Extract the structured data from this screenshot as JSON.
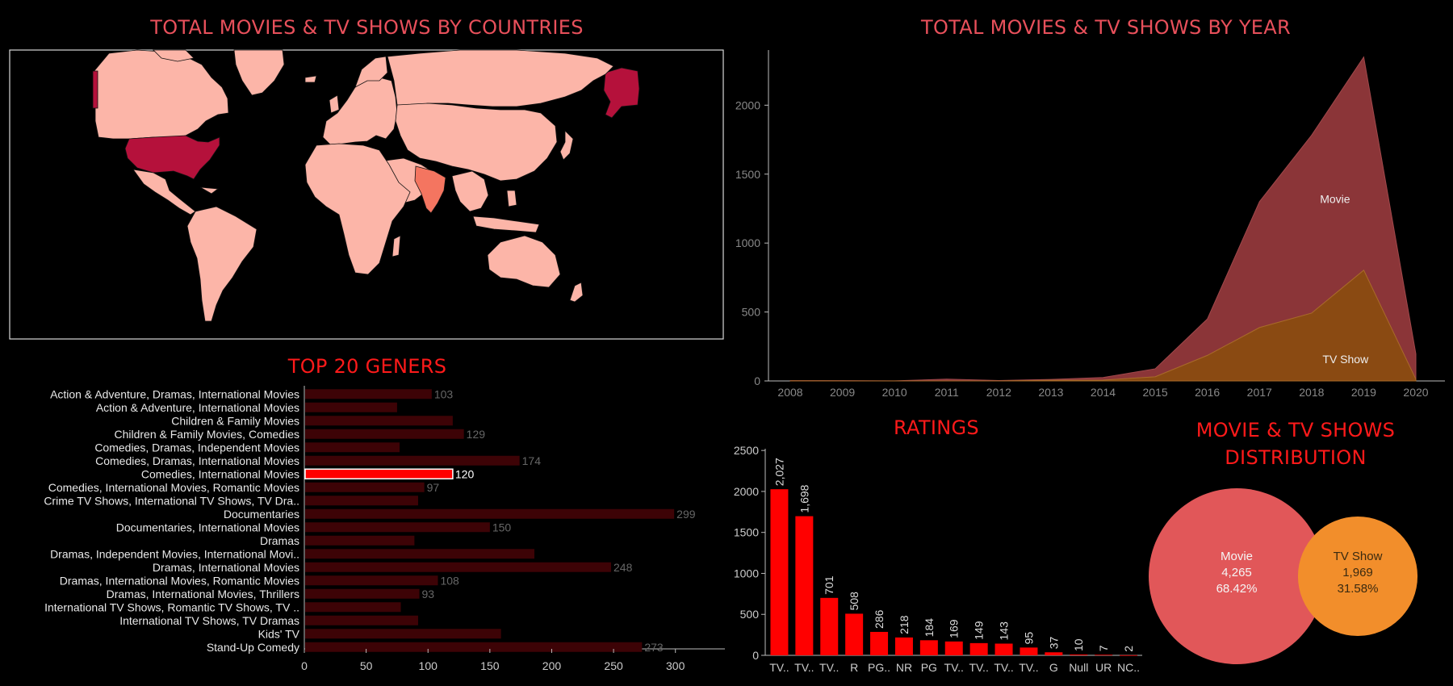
{
  "colors": {
    "background": "#000000",
    "title_red": "#e8505b",
    "title_bright_red": "#ff1a1a",
    "map_land": "#fcb5a8",
    "map_high": "#b5113b",
    "map_mid": "#f47560",
    "genre_bar": "#3d0306",
    "genre_highlight": "#ff0000",
    "rating_bar": "#ff0000",
    "movie_area": "#8b3538",
    "tvshow_area": "#8a4a12",
    "movie_bubble": "#e15759",
    "tvshow_bubble": "#f28e2b"
  },
  "map": {
    "title": "TOTAL MOVIES & TV SHOWS BY COUNTRIES"
  },
  "year_chart": {
    "title": "TOTAL MOVIES & TV SHOWS BY YEAR"
  },
  "genre_chart": {
    "title": "TOP 20 GENERS"
  },
  "ratings_chart": {
    "title": "RATINGS"
  },
  "distribution_chart": {
    "title_line1": "MOVIE & TV SHOWS",
    "title_line2": "DISTRIBUTION"
  },
  "chart_data": [
    {
      "type": "map",
      "title": "TOTAL MOVIES & TV SHOWS BY COUNTRIES",
      "highlighted_regions": [
        {
          "name": "United States",
          "level": "high"
        },
        {
          "name": "Alaska",
          "level": "high"
        },
        {
          "name": "India",
          "level": "mid"
        }
      ]
    },
    {
      "type": "area",
      "title": "TOTAL MOVIES & TV SHOWS BY YEAR",
      "x": [
        2008,
        2009,
        2010,
        2011,
        2012,
        2013,
        2014,
        2015,
        2016,
        2017,
        2018,
        2019,
        2020
      ],
      "xlim": [
        2008,
        2020
      ],
      "ylim": [
        0,
        2400
      ],
      "yticks": [
        0,
        500,
        1000,
        1500,
        2000
      ],
      "stacked": true,
      "series": [
        {
          "name": "Movie",
          "values": [
            1,
            2,
            1,
            13,
            3,
            6,
            19,
            58,
            264,
            913,
            1290,
            1546,
            184
          ]
        },
        {
          "name": "TV Show",
          "values": [
            1,
            0,
            0,
            0,
            0,
            5,
            6,
            30,
            185,
            387,
            492,
            803,
            12
          ]
        }
      ],
      "legend": "inline"
    },
    {
      "type": "bar",
      "orientation": "horizontal",
      "title": "TOP 20 GENERS",
      "categories": [
        "Action & Adventure, Dramas, International Movies",
        "Action & Adventure, International Movies",
        "Children & Family Movies",
        "Children & Family Movies, Comedies",
        "Comedies, Dramas, Independent Movies",
        "Comedies, Dramas, International Movies",
        "Comedies, International Movies",
        "Comedies, International Movies, Romantic Movies",
        "Crime TV Shows, International TV Shows, TV Dra..",
        "Documentaries",
        "Documentaries, International Movies",
        "Dramas",
        "Dramas, Independent Movies, International Movi..",
        "Dramas, International Movies",
        "Dramas, International Movies, Romantic Movies",
        "Dramas, International Movies, Thrillers",
        "International TV Shows, Romantic TV Shows, TV ..",
        "International TV Shows, TV Dramas",
        "Kids' TV",
        "Stand-Up Comedy"
      ],
      "values": [
        103,
        75,
        120,
        129,
        77,
        174,
        120,
        97,
        92,
        299,
        150,
        89,
        186,
        248,
        108,
        93,
        78,
        92,
        159,
        273
      ],
      "labels": [
        "103",
        "",
        "",
        "129",
        "",
        "174",
        "120",
        "97",
        "",
        "299",
        "150",
        "",
        "",
        "248",
        "108",
        "93",
        "",
        "",
        "",
        "273"
      ],
      "highlight": "Comedies, International Movies",
      "xlim": [
        0,
        340
      ],
      "xticks": [
        "0",
        "50",
        "100",
        "150",
        "200",
        "250",
        "300"
      ]
    },
    {
      "type": "bar",
      "title": "RATINGS",
      "categories": [
        "TV..",
        "TV..",
        "TV..",
        "R",
        "PG..",
        "NR",
        "PG",
        "TV..",
        "TV..",
        "TV..",
        "TV..",
        "G",
        "Null",
        "UR",
        "NC.."
      ],
      "values": [
        2027,
        1698,
        701,
        508,
        286,
        218,
        184,
        169,
        149,
        143,
        95,
        37,
        10,
        7,
        2
      ],
      "labels": [
        "2,027",
        "1,698",
        "701",
        "508",
        "286",
        "218",
        "184",
        "169",
        "149",
        "143",
        "95",
        "37",
        "10",
        "7",
        "2"
      ],
      "ylim": [
        0,
        2600
      ],
      "yticks": [
        "0",
        "500",
        "1000",
        "1500",
        "2000",
        "2500"
      ]
    },
    {
      "type": "bubble",
      "title": "MOVIE & TV SHOWS DISTRIBUTION",
      "items": [
        {
          "name": "Movie",
          "value_label": "4,265",
          "pct_label": "68.42%",
          "value": 4265
        },
        {
          "name": "TV Show",
          "value_label": "1,969",
          "pct_label": "31.58%",
          "value": 1969
        }
      ]
    }
  ]
}
